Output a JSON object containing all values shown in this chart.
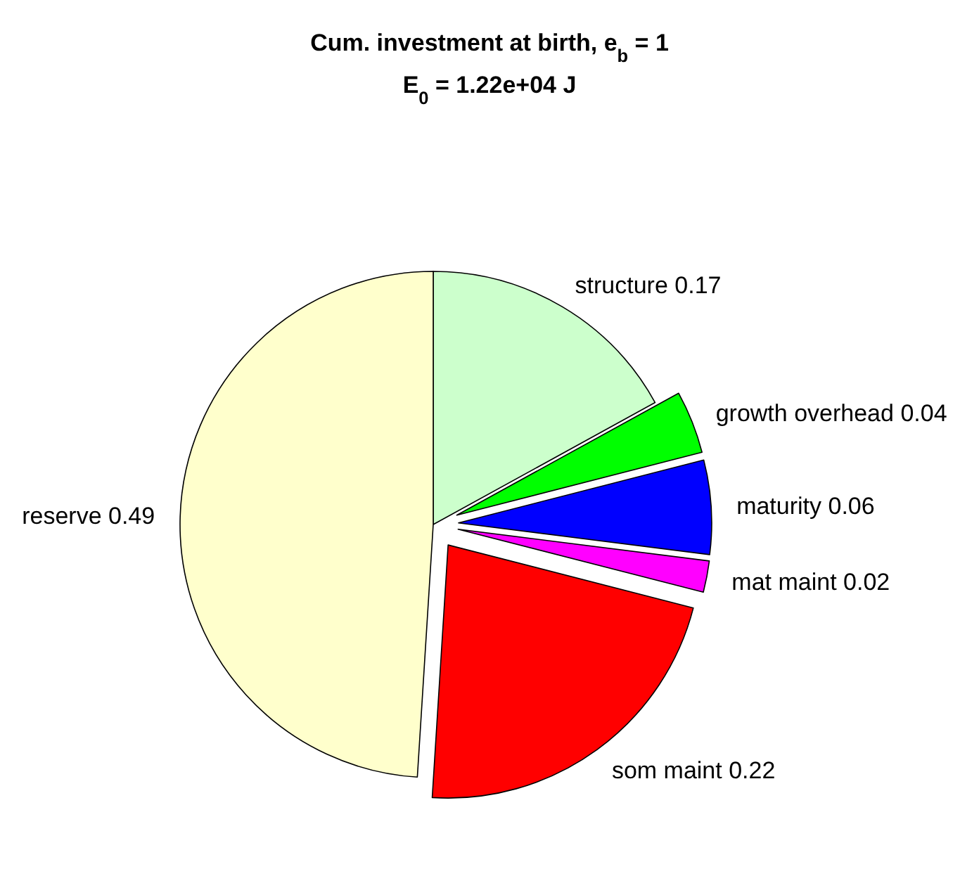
{
  "chart_data": {
    "type": "pie",
    "title": "Cum. investment at birth, e$_{b}$ = 1",
    "subtitle": "E$_{0}$ = 1.22e+04 J",
    "categories": [
      "structure",
      "growth overhead",
      "maturity",
      "mat maint",
      "som maint",
      "reserve"
    ],
    "values": [
      0.17,
      0.04,
      0.06,
      0.02,
      0.22,
      0.49
    ],
    "colors": [
      "#ccffcc",
      "#00ff00",
      "#0000ff",
      "#ff00ff",
      "#ff0000",
      "#ffffcc"
    ],
    "data_labels": true
  }
}
